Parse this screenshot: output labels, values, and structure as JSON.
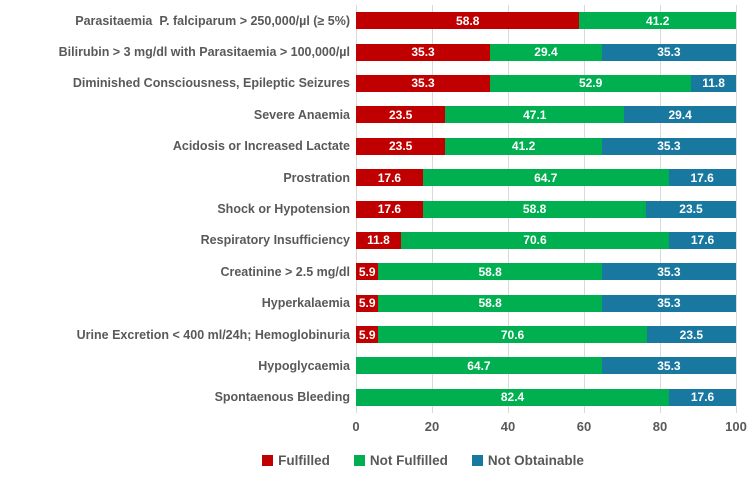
{
  "chart_data": {
    "type": "bar",
    "orientation": "horizontal",
    "stacked": true,
    "categories": [
      "Parasitaemia  P. falciparum > 250,000/µl (≥ 5%)",
      "Bilirubin > 3 mg/dl with Parasitaemia > 100,000/µl",
      "Diminished Consciousness, Epileptic Seizures",
      "Severe Anaemia",
      "Acidosis or Increased Lactate",
      "Prostration",
      "Shock or Hypotension",
      "Respiratory Insufficiency",
      "Creatinine > 2.5 mg/dl",
      "Hyperkalaemia",
      "Urine Excretion < 400 ml/24h; Hemoglobinuria",
      "Hypoglycaemia",
      "Spontaenous Bleeding"
    ],
    "series": [
      {
        "name": "Fulfilled",
        "color": "#c00000",
        "values": [
          58.8,
          35.3,
          35.3,
          23.5,
          23.5,
          17.6,
          17.6,
          11.8,
          5.9,
          5.9,
          5.9,
          0,
          0
        ]
      },
      {
        "name": "Not Fulfilled",
        "color": "#00b050",
        "values": [
          41.2,
          29.4,
          52.9,
          47.1,
          41.2,
          64.7,
          58.8,
          70.6,
          58.8,
          58.8,
          70.6,
          64.7,
          82.4
        ]
      },
      {
        "name": "Not Obtainable",
        "color": "#1878a0",
        "values": [
          0,
          35.3,
          11.8,
          29.4,
          35.3,
          17.6,
          23.5,
          17.6,
          35.3,
          35.3,
          23.5,
          35.3,
          17.6
        ]
      }
    ],
    "x_ticks": [
      "0",
      "20",
      "40",
      "60",
      "80",
      "100"
    ],
    "xlim": [
      0,
      100
    ],
    "grid": true,
    "legend_position": "bottom",
    "value_labels": "inside-center",
    "colors": {
      "grid": "#d9d9d9",
      "text": "#595959",
      "value_text": "#ffffff",
      "background": "#ffffff"
    }
  }
}
